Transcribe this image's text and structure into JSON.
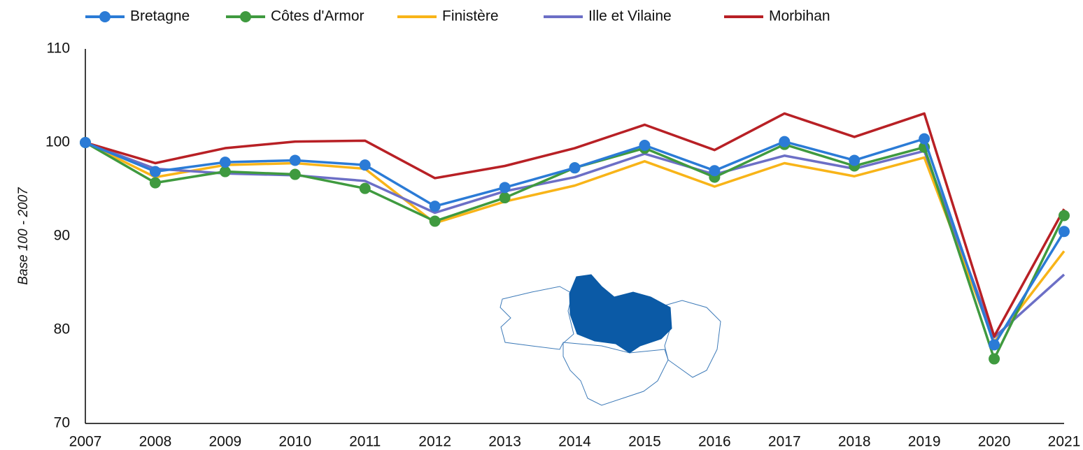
{
  "chart_data": {
    "type": "line",
    "y_label": "Base 100 - 2007",
    "x": [
      2007,
      2008,
      2009,
      2010,
      2011,
      2012,
      2013,
      2014,
      2015,
      2016,
      2017,
      2018,
      2019,
      2020,
      2021
    ],
    "xlim": [
      2007,
      2021
    ],
    "xticks": [
      2007,
      2008,
      2009,
      2010,
      2011,
      2012,
      2013,
      2014,
      2015,
      2016,
      2017,
      2018,
      2019,
      2020,
      2021
    ],
    "ylim": [
      70,
      110
    ],
    "yticks": [
      70,
      80,
      90,
      100,
      110
    ],
    "grid": false,
    "legend": "top",
    "series": [
      {
        "name": "Bretagne",
        "color": "#2b7bd6",
        "marker": true,
        "values": [
          100,
          96.9,
          97.9,
          98.1,
          97.6,
          93.2,
          95.2,
          97.3,
          99.7,
          97.0,
          100.1,
          98.1,
          100.4,
          78.4,
          90.5
        ]
      },
      {
        "name": "Côtes d'Armor",
        "color": "#3f9a3f",
        "marker": true,
        "values": [
          100,
          95.7,
          96.9,
          96.6,
          95.1,
          91.6,
          94.1,
          97.3,
          99.4,
          96.3,
          99.8,
          97.5,
          99.5,
          76.9,
          92.2
        ]
      },
      {
        "name": "Finistère",
        "color": "#f8b418",
        "marker": false,
        "values": [
          100,
          96.3,
          97.6,
          97.8,
          97.2,
          91.4,
          93.7,
          95.4,
          98.0,
          95.3,
          97.8,
          96.4,
          98.4,
          78.7,
          88.4
        ]
      },
      {
        "name": "Ille et Vilaine",
        "color": "#6c6fc6",
        "marker": false,
        "values": [
          100,
          97.2,
          96.7,
          96.5,
          95.9,
          92.5,
          94.8,
          96.3,
          98.8,
          96.6,
          98.6,
          97.2,
          99.1,
          79.2,
          85.9
        ]
      },
      {
        "name": "Morbihan",
        "color": "#b82025",
        "marker": false,
        "values": [
          100,
          97.8,
          99.4,
          100.1,
          100.2,
          96.2,
          97.5,
          99.4,
          101.9,
          99.2,
          103.1,
          100.6,
          103.1,
          79.3,
          92.9
        ]
      }
    ]
  }
}
